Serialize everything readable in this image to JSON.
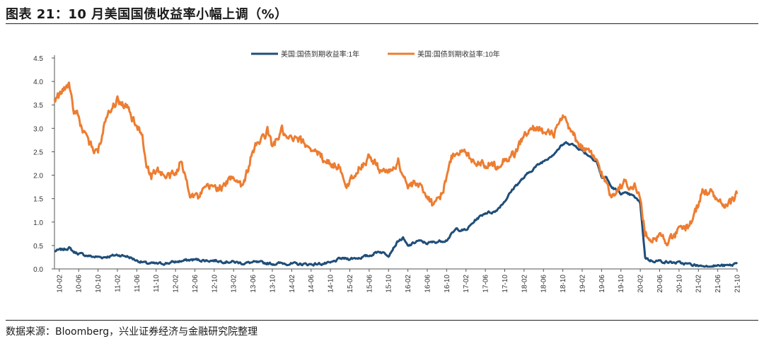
{
  "title": "图表 21：10 月美国国债收益率小幅上调（%）",
  "source": "数据来源：Bloomberg，兴业证券经济与金融研究院整理",
  "chart_data": {
    "type": "line",
    "ylim": [
      0,
      4.5
    ],
    "yticks": [
      "0.0",
      "0.5",
      "1.0",
      "1.5",
      "2.0",
      "2.5",
      "3.0",
      "3.5",
      "4.0",
      "4.5"
    ],
    "xlim": [
      "2010-01",
      "2021-10"
    ],
    "xticks": [
      "10-02",
      "10-06",
      "10-10",
      "11-02",
      "11-06",
      "11-10",
      "12-02",
      "12-06",
      "12-10",
      "13-02",
      "13-06",
      "13-10",
      "14-02",
      "14-06",
      "14-10",
      "15-02",
      "15-06",
      "15-10",
      "16-02",
      "16-06",
      "16-10",
      "17-02",
      "17-06",
      "17-10",
      "18-02",
      "18-06",
      "18-10",
      "19-02",
      "19-06",
      "19-10",
      "20-02",
      "20-06",
      "20-10",
      "21-02",
      "21-06",
      "21-10"
    ],
    "legend_position": "top-center",
    "grid": false,
    "series": [
      {
        "name": "美国:国债到期收益率:1年",
        "color": "#1f4e79",
        "points": [
          [
            "2010-01",
            0.38
          ],
          [
            "2010-03",
            0.42
          ],
          [
            "2010-04",
            0.45
          ],
          [
            "2010-05",
            0.36
          ],
          [
            "2010-07",
            0.3
          ],
          [
            "2010-09",
            0.26
          ],
          [
            "2010-11",
            0.25
          ],
          [
            "2011-01",
            0.28
          ],
          [
            "2011-02",
            0.3
          ],
          [
            "2011-04",
            0.27
          ],
          [
            "2011-06",
            0.18
          ],
          [
            "2011-08",
            0.12
          ],
          [
            "2011-10",
            0.11
          ],
          [
            "2011-12",
            0.12
          ],
          [
            "2012-02",
            0.15
          ],
          [
            "2012-04",
            0.18
          ],
          [
            "2012-06",
            0.2
          ],
          [
            "2012-08",
            0.18
          ],
          [
            "2012-10",
            0.18
          ],
          [
            "2012-12",
            0.16
          ],
          [
            "2013-02",
            0.15
          ],
          [
            "2013-04",
            0.12
          ],
          [
            "2013-06",
            0.14
          ],
          [
            "2013-08",
            0.13
          ],
          [
            "2013-10",
            0.11
          ],
          [
            "2013-12",
            0.12
          ],
          [
            "2014-02",
            0.11
          ],
          [
            "2014-04",
            0.1
          ],
          [
            "2014-06",
            0.1
          ],
          [
            "2014-08",
            0.11
          ],
          [
            "2014-10",
            0.12
          ],
          [
            "2014-12",
            0.22
          ],
          [
            "2015-02",
            0.22
          ],
          [
            "2015-04",
            0.24
          ],
          [
            "2015-06",
            0.28
          ],
          [
            "2015-08",
            0.38
          ],
          [
            "2015-10",
            0.3
          ],
          [
            "2015-12",
            0.6
          ],
          [
            "2016-01",
            0.65
          ],
          [
            "2016-02",
            0.48
          ],
          [
            "2016-04",
            0.6
          ],
          [
            "2016-06",
            0.55
          ],
          [
            "2016-08",
            0.58
          ],
          [
            "2016-10",
            0.62
          ],
          [
            "2016-12",
            0.85
          ],
          [
            "2017-02",
            0.82
          ],
          [
            "2017-04",
            1.05
          ],
          [
            "2017-06",
            1.2
          ],
          [
            "2017-08",
            1.22
          ],
          [
            "2017-10",
            1.45
          ],
          [
            "2017-12",
            1.75
          ],
          [
            "2018-02",
            1.95
          ],
          [
            "2018-04",
            2.15
          ],
          [
            "2018-06",
            2.3
          ],
          [
            "2018-08",
            2.45
          ],
          [
            "2018-10",
            2.65
          ],
          [
            "2018-11",
            2.7
          ],
          [
            "2019-01",
            2.6
          ],
          [
            "2019-03",
            2.45
          ],
          [
            "2019-05",
            2.3
          ],
          [
            "2019-06",
            1.95
          ],
          [
            "2019-07",
            1.95
          ],
          [
            "2019-08",
            1.75
          ],
          [
            "2019-10",
            1.62
          ],
          [
            "2019-12",
            1.58
          ],
          [
            "2020-01",
            1.52
          ],
          [
            "2020-02",
            1.4
          ],
          [
            "2020-03",
            0.25
          ],
          [
            "2020-04",
            0.18
          ],
          [
            "2020-06",
            0.17
          ],
          [
            "2020-08",
            0.14
          ],
          [
            "2020-10",
            0.13
          ],
          [
            "2020-12",
            0.1
          ],
          [
            "2021-02",
            0.07
          ],
          [
            "2021-04",
            0.06
          ],
          [
            "2021-06",
            0.07
          ],
          [
            "2021-08",
            0.07
          ],
          [
            "2021-09",
            0.08
          ],
          [
            "2021-10",
            0.14
          ]
        ]
      },
      {
        "name": "美国:国债到期收益率:10年",
        "color": "#ed7d31",
        "points": [
          [
            "2010-01",
            3.65
          ],
          [
            "2010-02",
            3.7
          ],
          [
            "2010-04",
            3.95
          ],
          [
            "2010-05",
            3.4
          ],
          [
            "2010-06",
            3.2
          ],
          [
            "2010-08",
            2.65
          ],
          [
            "2010-10",
            2.5
          ],
          [
            "2010-12",
            3.4
          ],
          [
            "2011-02",
            3.6
          ],
          [
            "2011-04",
            3.45
          ],
          [
            "2011-06",
            3.0
          ],
          [
            "2011-07",
            2.95
          ],
          [
            "2011-08",
            2.25
          ],
          [
            "2011-09",
            1.95
          ],
          [
            "2011-10",
            2.15
          ],
          [
            "2011-12",
            1.95
          ],
          [
            "2012-02",
            2.0
          ],
          [
            "2012-03",
            2.3
          ],
          [
            "2012-05",
            1.65
          ],
          [
            "2012-07",
            1.5
          ],
          [
            "2012-08",
            1.7
          ],
          [
            "2012-10",
            1.75
          ],
          [
            "2012-12",
            1.75
          ],
          [
            "2013-02",
            2.0
          ],
          [
            "2013-04",
            1.75
          ],
          [
            "2013-05",
            2.15
          ],
          [
            "2013-06",
            2.55
          ],
          [
            "2013-07",
            2.65
          ],
          [
            "2013-09",
            2.95
          ],
          [
            "2013-10",
            2.6
          ],
          [
            "2013-12",
            2.95
          ],
          [
            "2014-01",
            2.75
          ],
          [
            "2014-03",
            2.75
          ],
          [
            "2014-06",
            2.6
          ],
          [
            "2014-08",
            2.4
          ],
          [
            "2014-10",
            2.25
          ],
          [
            "2014-12",
            2.2
          ],
          [
            "2015-01",
            1.7
          ],
          [
            "2015-03",
            2.05
          ],
          [
            "2015-06",
            2.4
          ],
          [
            "2015-08",
            2.15
          ],
          [
            "2015-10",
            2.05
          ],
          [
            "2015-12",
            2.3
          ],
          [
            "2016-02",
            1.75
          ],
          [
            "2016-04",
            1.8
          ],
          [
            "2016-06",
            1.6
          ],
          [
            "2016-07",
            1.4
          ],
          [
            "2016-09",
            1.6
          ],
          [
            "2016-11",
            2.35
          ],
          [
            "2016-12",
            2.55
          ],
          [
            "2017-02",
            2.45
          ],
          [
            "2017-04",
            2.3
          ],
          [
            "2017-06",
            2.25
          ],
          [
            "2017-08",
            2.2
          ],
          [
            "2017-10",
            2.35
          ],
          [
            "2017-12",
            2.45
          ],
          [
            "2018-02",
            2.85
          ],
          [
            "2018-05",
            3.05
          ],
          [
            "2018-06",
            2.9
          ],
          [
            "2018-08",
            2.85
          ],
          [
            "2018-10",
            3.2
          ],
          [
            "2018-11",
            3.05
          ],
          [
            "2019-01",
            2.7
          ],
          [
            "2019-03",
            2.5
          ],
          [
            "2019-05",
            2.3
          ],
          [
            "2019-06",
            2.05
          ],
          [
            "2019-08",
            1.55
          ],
          [
            "2019-09",
            1.7
          ],
          [
            "2019-11",
            1.85
          ],
          [
            "2020-01",
            1.75
          ],
          [
            "2020-02",
            1.5
          ],
          [
            "2020-03",
            0.75
          ],
          [
            "2020-04",
            0.65
          ],
          [
            "2020-06",
            0.7
          ],
          [
            "2020-08",
            0.6
          ],
          [
            "2020-10",
            0.8
          ],
          [
            "2020-12",
            0.93
          ],
          [
            "2021-01",
            1.1
          ],
          [
            "2021-02",
            1.4
          ],
          [
            "2021-03",
            1.7
          ],
          [
            "2021-05",
            1.6
          ],
          [
            "2021-07",
            1.3
          ],
          [
            "2021-08",
            1.3
          ],
          [
            "2021-09",
            1.45
          ],
          [
            "2021-10",
            1.6
          ]
        ]
      }
    ]
  }
}
